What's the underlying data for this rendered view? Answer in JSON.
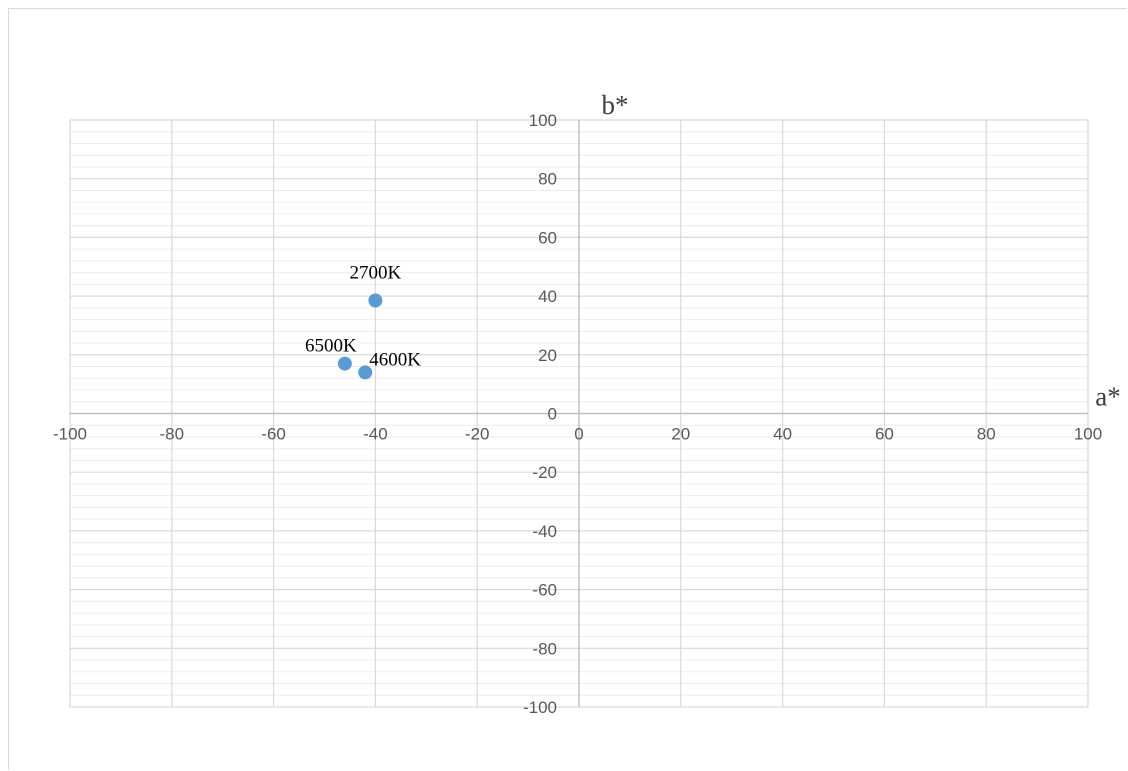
{
  "chart_data": {
    "type": "scatter",
    "xlabel": "a*",
    "ylabel": "b*",
    "xlim": [
      -100,
      100
    ],
    "ylim": [
      -100,
      100
    ],
    "x_major_step": 20,
    "y_major_step": 20,
    "y_minor_step": 4,
    "grid": true,
    "legend": "none",
    "marker_color": "#5b9bd5",
    "major_grid_color": "#d9d9d9",
    "minor_grid_color": "#ececec",
    "axis_color": "#bfbfbf",
    "series": [
      {
        "points": [
          {
            "label": "2700K",
            "x": -40,
            "y": 38.5
          },
          {
            "label": "6500K",
            "x": -46,
            "y": 17
          },
          {
            "label": "4600K",
            "x": -42,
            "y": 14
          }
        ]
      }
    ]
  }
}
